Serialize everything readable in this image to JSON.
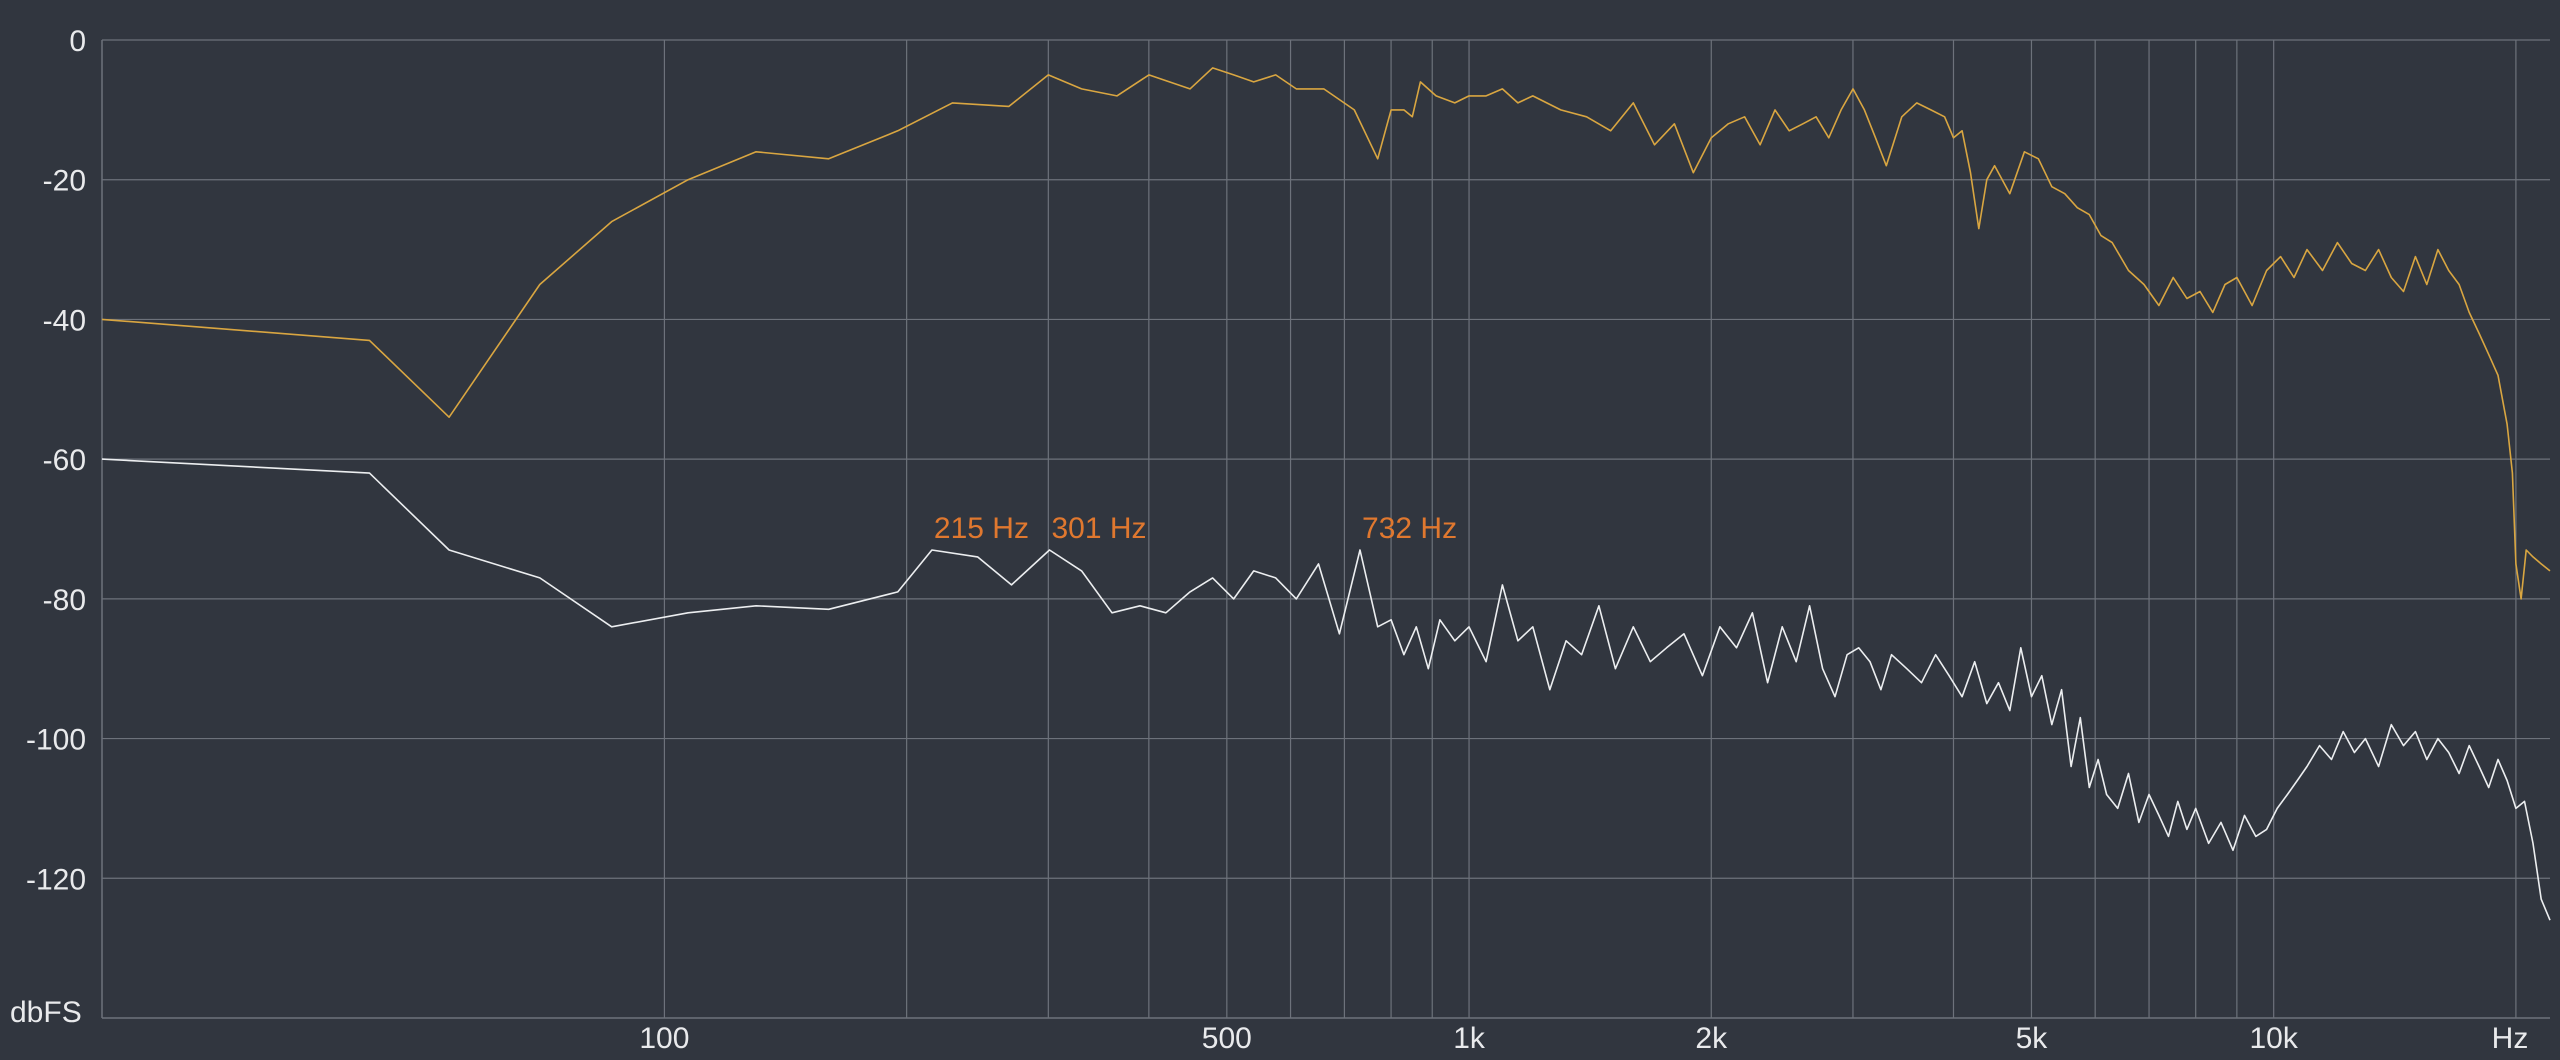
{
  "chart_data": {
    "type": "line",
    "title": "",
    "xlabel": "Hz",
    "ylabel": "dbFS",
    "x_scale": "log",
    "xlim": [
      20,
      22050
    ],
    "ylim": [
      -140,
      0
    ],
    "grid": true,
    "y_ticks": [
      {
        "value": 0,
        "label": "0"
      },
      {
        "value": -20,
        "label": "-20"
      },
      {
        "value": -40,
        "label": "-40"
      },
      {
        "value": -60,
        "label": "-60"
      },
      {
        "value": -80,
        "label": "-80"
      },
      {
        "value": -100,
        "label": "-100"
      },
      {
        "value": -120,
        "label": "-120"
      }
    ],
    "x_tick_labels": [
      {
        "value": 100,
        "label": "100"
      },
      {
        "value": 500,
        "label": "500"
      },
      {
        "value": 1000,
        "label": "1k"
      },
      {
        "value": 2000,
        "label": "2k"
      },
      {
        "value": 5000,
        "label": "5k"
      },
      {
        "value": 10000,
        "label": "10k"
      }
    ],
    "x_gridlines": [
      100,
      200,
      300,
      400,
      500,
      600,
      700,
      800,
      900,
      1000,
      2000,
      3000,
      4000,
      5000,
      6000,
      7000,
      8000,
      9000,
      10000,
      20000
    ],
    "colors": {
      "series_1": "#d9a641",
      "series_2": "#eceef0",
      "annotation": "#e0782f",
      "grid": "#6d727b"
    },
    "series": [
      {
        "color": "#d9a641",
        "x": [
          20,
          43,
          54,
          70,
          86,
          107,
          130,
          160,
          195,
          228,
          268,
          300,
          330,
          365,
          400,
          450,
          480,
          510,
          540,
          575,
          610,
          660,
          720,
          770,
          800,
          830,
          850,
          870,
          910,
          960,
          1000,
          1050,
          1100,
          1150,
          1200,
          1300,
          1400,
          1500,
          1600,
          1700,
          1800,
          1900,
          2000,
          2100,
          2200,
          2300,
          2400,
          2500,
          2600,
          2700,
          2800,
          2900,
          3000,
          3100,
          3200,
          3300,
          3450,
          3600,
          3750,
          3900,
          4000,
          4100,
          4200,
          4300,
          4400,
          4500,
          4700,
          4900,
          5100,
          5300,
          5500,
          5700,
          5900,
          6100,
          6300,
          6600,
          6900,
          7200,
          7500,
          7800,
          8100,
          8400,
          8700,
          9000,
          9400,
          9800,
          10200,
          10600,
          11000,
          11500,
          12000,
          12500,
          13000,
          13500,
          14000,
          14500,
          15000,
          15500,
          16000,
          16500,
          17000,
          17500,
          18000,
          18500,
          19000,
          19500,
          19800,
          20000,
          20300,
          20600,
          21000,
          21500,
          22050
        ],
        "values": [
          -40,
          -43,
          -54,
          -35,
          -26,
          -20,
          -16,
          -17,
          -13,
          -9,
          -9.5,
          -5,
          -7,
          -8,
          -5,
          -7,
          -4,
          -5,
          -6,
          -5,
          -7,
          -7,
          -10,
          -17,
          -10,
          -10,
          -11,
          -6,
          -8,
          -9,
          -8,
          -8,
          -7,
          -9,
          -8,
          -10,
          -11,
          -13,
          -9,
          -15,
          -12,
          -19,
          -14,
          -12,
          -11,
          -15,
          -10,
          -13,
          -12,
          -11,
          -14,
          -10,
          -7,
          -10,
          -14,
          -18,
          -11,
          -9,
          -10,
          -11,
          -14,
          -13,
          -19,
          -27,
          -20,
          -18,
          -22,
          -16,
          -17,
          -21,
          -22,
          -24,
          -25,
          -28,
          -29,
          -33,
          -35,
          -38,
          -34,
          -37,
          -36,
          -39,
          -35,
          -34,
          -38,
          -33,
          -31,
          -34,
          -30,
          -33,
          -29,
          -32,
          -33,
          -30,
          -34,
          -36,
          -31,
          -35,
          -30,
          -33,
          -35,
          -39,
          -42,
          -45,
          -48,
          -55,
          -62,
          -75,
          -80,
          -73,
          -74,
          -75,
          -76
        ]
      },
      {
        "color": "#eceef0",
        "x": [
          20,
          43,
          54,
          70,
          86,
          107,
          130,
          160,
          195,
          215,
          245,
          270,
          301,
          330,
          360,
          390,
          420,
          450,
          480,
          510,
          540,
          575,
          610,
          650,
          690,
          732,
          770,
          800,
          830,
          860,
          890,
          920,
          960,
          1000,
          1050,
          1100,
          1150,
          1200,
          1260,
          1320,
          1380,
          1450,
          1520,
          1600,
          1680,
          1760,
          1850,
          1950,
          2050,
          2150,
          2250,
          2350,
          2450,
          2550,
          2650,
          2750,
          2850,
          2950,
          3050,
          3150,
          3250,
          3350,
          3500,
          3650,
          3800,
          3950,
          4100,
          4250,
          4400,
          4550,
          4700,
          4850,
          5000,
          5150,
          5300,
          5450,
          5600,
          5750,
          5900,
          6050,
          6200,
          6400,
          6600,
          6800,
          7000,
          7200,
          7400,
          7600,
          7800,
          8000,
          8300,
          8600,
          8900,
          9200,
          9500,
          9800,
          10100,
          10400,
          10700,
          11000,
          11400,
          11800,
          12200,
          12600,
          13000,
          13500,
          14000,
          14500,
          15000,
          15500,
          16000,
          16500,
          17000,
          17500,
          18000,
          18500,
          19000,
          19500,
          20000,
          20500,
          21000,
          21500,
          22050
        ],
        "values": [
          -60,
          -62,
          -73,
          -77,
          -84,
          -82,
          -81,
          -81.5,
          -79,
          -73,
          -74,
          -78,
          -73,
          -76,
          -82,
          -81,
          -82,
          -79,
          -77,
          -80,
          -76,
          -77,
          -80,
          -75,
          -85,
          -73,
          -84,
          -83,
          -88,
          -84,
          -90,
          -83,
          -86,
          -84,
          -89,
          -78,
          -86,
          -84,
          -93,
          -86,
          -88,
          -81,
          -90,
          -84,
          -89,
          -87,
          -85,
          -91,
          -84,
          -87,
          -82,
          -92,
          -84,
          -89,
          -81,
          -90,
          -94,
          -88,
          -87,
          -89,
          -93,
          -88,
          -90,
          -92,
          -88,
          -91,
          -94,
          -89,
          -95,
          -92,
          -96,
          -87,
          -94,
          -91,
          -98,
          -93,
          -104,
          -97,
          -107,
          -103,
          -108,
          -110,
          -105,
          -112,
          -108,
          -111,
          -114,
          -109,
          -113,
          -110,
          -115,
          -112,
          -116,
          -111,
          -114,
          -113,
          -110,
          -108,
          -106,
          -104,
          -101,
          -103,
          -99,
          -102,
          -100,
          -104,
          -98,
          -101,
          -99,
          -103,
          -100,
          -102,
          -105,
          -101,
          -104,
          -107,
          -103,
          -106,
          -110,
          -109,
          -115,
          -123,
          -126
        ]
      }
    ],
    "annotations": [
      {
        "x": 215,
        "y": -73,
        "label": "215 Hz"
      },
      {
        "x": 301,
        "y": -73,
        "label": "301 Hz"
      },
      {
        "x": 732,
        "y": -73,
        "label": "732 Hz"
      }
    ]
  }
}
